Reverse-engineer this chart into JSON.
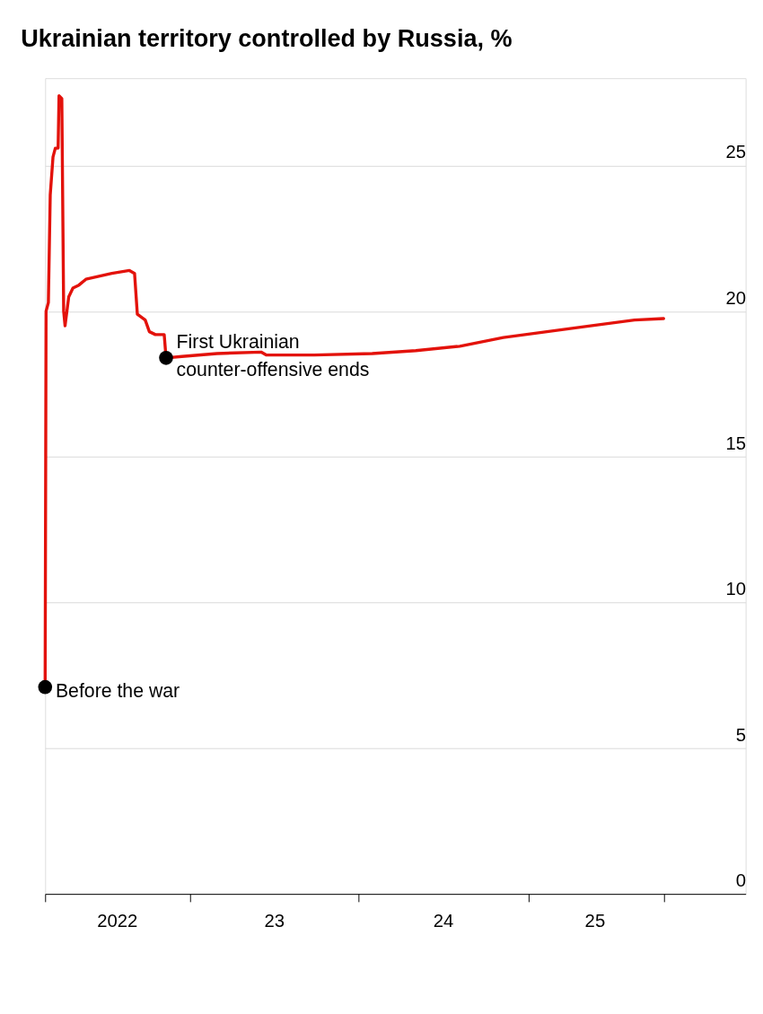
{
  "chart_data": {
    "type": "line",
    "title": "Ukrainian territory controlled by Russia, %",
    "x": [
      "2022-02-23",
      "2022-02-25",
      "2022-03-02",
      "2022-03-06",
      "2022-03-12",
      "2022-03-17",
      "2022-03-23",
      "2022-03-25",
      "2022-03-31",
      "2022-04-04",
      "2022-04-07",
      "2022-04-15",
      "2022-04-24",
      "2022-05-07",
      "2022-05-22",
      "2022-06-19",
      "2022-07-17",
      "2022-08-24",
      "2022-09-04",
      "2022-09-10",
      "2022-09-27",
      "2022-10-06",
      "2022-10-19",
      "2022-11-07",
      "2022-11-11",
      "2022-12-15",
      "2023-03-01",
      "2023-06-04",
      "2023-06-15",
      "2023-09-27",
      "2024-01-30",
      "2024-05-03",
      "2024-08-06",
      "2024-11-08",
      "2025-02-10",
      "2025-05-15",
      "2025-08-18",
      "2025-10-20"
    ],
    "series": [
      {
        "color": "#e3120b",
        "values": [
          7.1,
          20.0,
          20.3,
          24.0,
          25.3,
          25.6,
          25.6,
          27.4,
          27.3,
          20.0,
          19.5,
          20.5,
          20.8,
          20.9,
          21.1,
          21.2,
          21.3,
          21.4,
          21.3,
          19.9,
          19.7,
          19.3,
          19.2,
          19.2,
          18.4,
          18.45,
          18.55,
          18.6,
          18.5,
          18.5,
          18.55,
          18.65,
          18.8,
          19.1,
          19.3,
          19.5,
          19.7,
          19.75
        ]
      }
    ],
    "xlim": [
      "2022-02-23",
      "2026-04-15"
    ],
    "xticks": [
      {
        "value": "2022-02-23",
        "label": null
      },
      {
        "value": "2022-07-28",
        "label": "2022"
      },
      {
        "value": "2023-01-01",
        "label": null
      },
      {
        "value": "2023-07-02",
        "label": "23"
      },
      {
        "value": "2024-01-01",
        "label": null
      },
      {
        "value": "2024-07-01",
        "label": "24"
      },
      {
        "value": "2025-01-01",
        "label": null
      },
      {
        "value": "2025-05-24",
        "label": "25"
      },
      {
        "value": "2025-10-20",
        "label": null
      }
    ],
    "ylim": [
      0,
      28
    ],
    "yticks": [
      0,
      5,
      10,
      15,
      20,
      25
    ],
    "grid": "y",
    "line_style": "solid",
    "marker": "none",
    "annotations": [
      {
        "text": "Before the war",
        "x": "2022-02-23",
        "y": 7.1
      },
      {
        "text": "First Ukrainian counter-offensive ends",
        "x": "2022-11-11",
        "y": 18.4
      }
    ]
  }
}
